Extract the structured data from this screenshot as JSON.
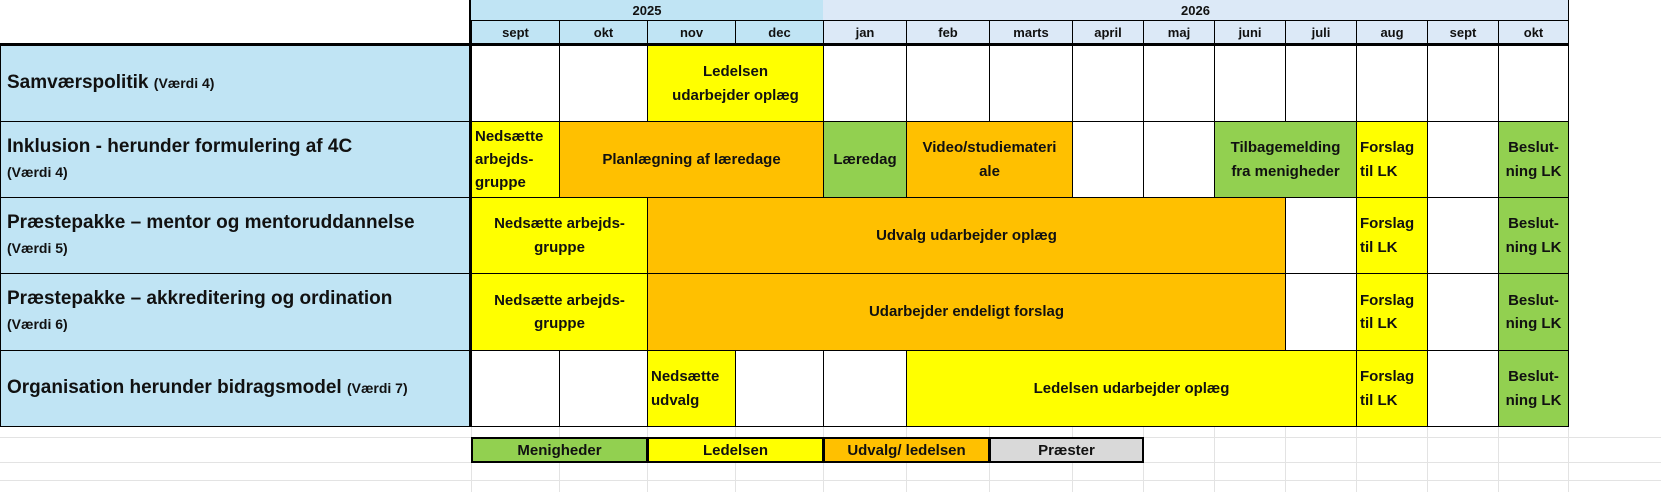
{
  "colors": {
    "menigheder": "#92d050",
    "ledelsen": "#ffff00",
    "udvalg": "#ffc000",
    "praester": "#d9d9d9",
    "header2025": "#c0e4f4",
    "header2026": "#dce9f7",
    "label": "#c0e4f4"
  },
  "years": [
    {
      "label": "2025",
      "start": 0,
      "span": 4
    },
    {
      "label": "2026",
      "start": 4,
      "span": 10
    }
  ],
  "months": [
    "sept",
    "okt",
    "nov",
    "dec",
    "jan",
    "feb",
    "marts",
    "april",
    "maj",
    "juni",
    "juli",
    "aug",
    "sept",
    "okt"
  ],
  "rows": [
    {
      "title": "Samværspolitik",
      "value": "(Værdi 4)",
      "inline": true,
      "cells": [
        {
          "start": 2,
          "span": 2,
          "text": "Ledelsen\nudarbejder oplæg",
          "type": "ledelsen"
        }
      ]
    },
    {
      "title": "Inklusion - herunder formulering af 4C",
      "value": "(Værdi 4)",
      "inline": false,
      "cells": [
        {
          "start": 0,
          "span": 1,
          "text": "Nedsætte\narbejds-\ngruppe",
          "type": "ledelsen",
          "left": true
        },
        {
          "start": 1,
          "span": 3,
          "text": "Planlægning af læredage",
          "type": "udvalg"
        },
        {
          "start": 4,
          "span": 1,
          "text": "Læredag",
          "type": "menigheder"
        },
        {
          "start": 5,
          "span": 2,
          "text": "Video/studiemateri\nale",
          "type": "udvalg"
        },
        {
          "start": 9,
          "span": 2,
          "text": "Tilbagemelding\nfra menigheder",
          "type": "menigheder"
        },
        {
          "start": 11,
          "span": 1,
          "text": "Forslag\ntil LK",
          "type": "ledelsen",
          "left": true
        },
        {
          "start": 13,
          "span": 1,
          "text": "Beslut-\nning LK",
          "type": "menigheder"
        }
      ]
    },
    {
      "title": "Præstepakke – mentor og mentoruddannelse",
      "value": "(Værdi 5)",
      "inline": false,
      "cells": [
        {
          "start": 0,
          "span": 2,
          "text": "Nedsætte arbejds-\ngruppe",
          "type": "ledelsen"
        },
        {
          "start": 2,
          "span": 8,
          "text": "Udvalg udarbejder oplæg",
          "type": "udvalg"
        },
        {
          "start": 11,
          "span": 1,
          "text": "Forslag\ntil LK",
          "type": "ledelsen",
          "left": true
        },
        {
          "start": 13,
          "span": 1,
          "text": "Beslut-\nning LK",
          "type": "menigheder"
        }
      ]
    },
    {
      "title": "Præstepakke – akkreditering og ordination",
      "value": "(Værdi 6)",
      "inline": false,
      "cells": [
        {
          "start": 0,
          "span": 2,
          "text": "Nedsætte arbejds-\ngruppe",
          "type": "ledelsen"
        },
        {
          "start": 2,
          "span": 8,
          "text": "Udarbejder endeligt forslag",
          "type": "udvalg"
        },
        {
          "start": 11,
          "span": 1,
          "text": "Forslag\ntil LK",
          "type": "ledelsen",
          "left": true
        },
        {
          "start": 13,
          "span": 1,
          "text": "Beslut-\nning LK",
          "type": "menigheder"
        }
      ]
    },
    {
      "title": "Organisation herunder bidragsmodel",
      "value": "(Værdi 7)",
      "inline": true,
      "cells": [
        {
          "start": 2,
          "span": 1,
          "text": "Nedsætte\nudvalg",
          "type": "ledelsen",
          "left": true
        },
        {
          "start": 5,
          "span": 6,
          "text": "Ledelsen udarbejder oplæg",
          "type": "ledelsen"
        },
        {
          "start": 11,
          "span": 1,
          "text": "Forslag\ntil LK",
          "type": "ledelsen",
          "left": true
        },
        {
          "start": 13,
          "span": 1,
          "text": "Beslut-\nning LK",
          "type": "menigheder"
        }
      ]
    }
  ],
  "legend": [
    {
      "label": "Menigheder",
      "type": "menigheder"
    },
    {
      "label": "Ledelsen",
      "type": "ledelsen"
    },
    {
      "label": "Udvalg/ ledelsen",
      "type": "udvalg"
    },
    {
      "label": "Præster",
      "type": "praester"
    }
  ]
}
